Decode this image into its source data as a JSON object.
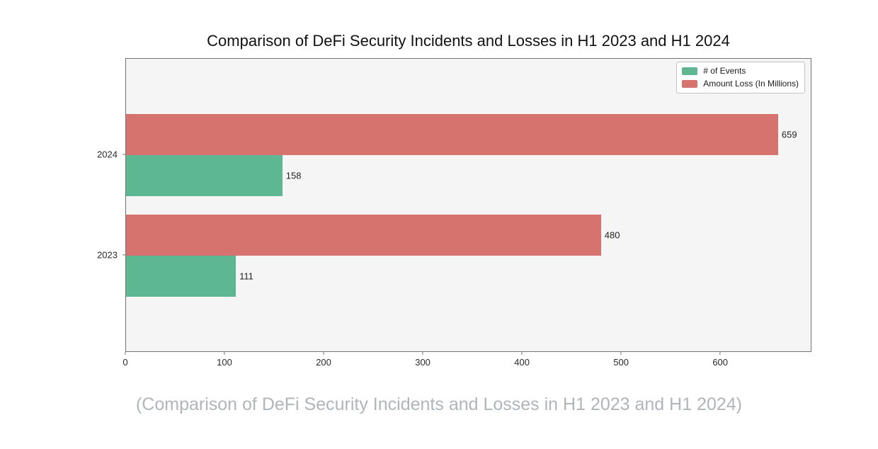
{
  "figure": {
    "title": "Comparison of DeFi Security Incidents and Losses in H1 2023 and H1 2024",
    "caption": "(Comparison of DeFi Security Incidents and Losses in H1 2023 and H1 2024)",
    "caption_color": "#b1b5b9"
  },
  "chart_data": {
    "type": "bar",
    "orientation": "horizontal",
    "title": "Comparison of DeFi Security Incidents and Losses in H1 2023 and H1 2024",
    "categories": [
      "2024",
      "2023"
    ],
    "series": [
      {
        "name": "# of Events",
        "color": "#5eb793",
        "values": [
          158,
          111
        ]
      },
      {
        "name": "Amount Loss (In Millions)",
        "color": "#d7736e",
        "values": [
          659,
          480
        ]
      }
    ],
    "bar_value_labels": true,
    "xlabel": "",
    "ylabel": "",
    "xlim": [
      0,
      692
    ],
    "xticks": [
      0,
      100,
      200,
      300,
      400,
      500,
      600
    ],
    "grid": false,
    "legend_position": "upper-right",
    "plot_background": "#f5f5f5"
  }
}
